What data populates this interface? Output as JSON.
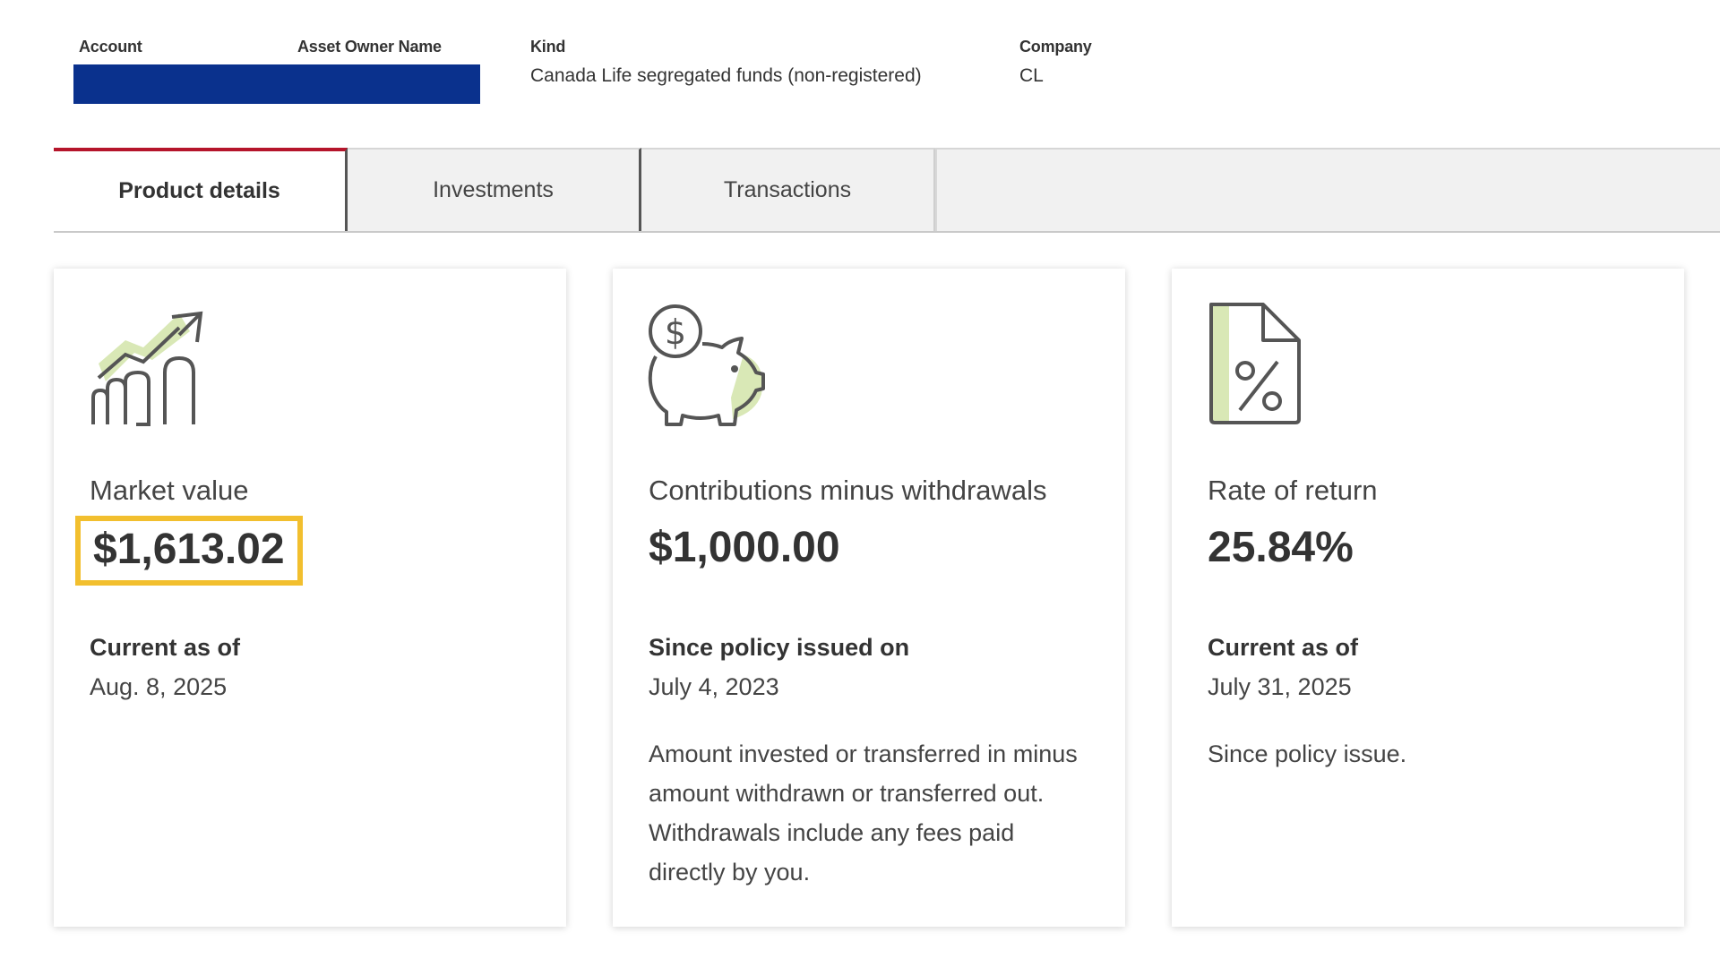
{
  "header": {
    "account_label": "Account",
    "owner_label": "Asset Owner Name",
    "kind_label": "Kind",
    "kind_value": "Canada Life segregated funds (non-registered)",
    "company_label": "Company",
    "company_value": "CL",
    "redaction_color": "#0a318d"
  },
  "tabs": [
    {
      "label": "Product details",
      "active": true
    },
    {
      "label": "Investments",
      "active": false
    },
    {
      "label": "Transactions",
      "active": false
    }
  ],
  "accent_color": "#b5152b",
  "highlight_color": "#f2bf2e",
  "cards": [
    {
      "icon": "growth-chart-icon",
      "title": "Market value",
      "value": "$1,613.02",
      "sub_label": "Current as of",
      "date": "Aug. 8, 2025",
      "description": ""
    },
    {
      "icon": "piggy-bank-icon",
      "title": "Contributions minus withdrawals",
      "value": "$1,000.00",
      "sub_label": "Since policy issued on",
      "date": "July 4, 2023",
      "description": "Amount invested or transferred in minus amount withdrawn or transferred out. Withdrawals include any fees paid directly by you."
    },
    {
      "icon": "percent-document-icon",
      "title": "Rate of return",
      "value": "25.84%",
      "sub_label": "Current as of",
      "date": "July 31, 2025",
      "description": "Since policy issue."
    }
  ]
}
